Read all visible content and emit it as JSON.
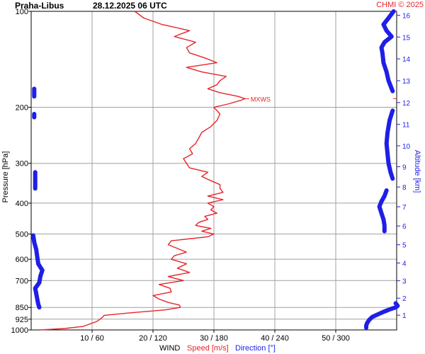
{
  "header": {
    "station": "Praha-Libus",
    "datetime": "28.12.2025 06 UTC",
    "credit": "CHMI © 2025"
  },
  "colors": {
    "speed": "#e8242a",
    "direction": "#1f1fe6",
    "grid": "#a0a0a0",
    "axis": "#000000",
    "background": "#ffffff"
  },
  "chart_data": {
    "type": "line",
    "title": "Praha-Libus   28.12.2025 06 UTC",
    "ylabel_left": "Pressure [hPa]",
    "ylabel_right": "Altitude [km]",
    "xlabel_prefix": "WIND",
    "xlabel_speed": "Speed [m/s]",
    "xlabel_direction": "Direction [°]",
    "pressure_scale": "log",
    "pressure_range": [
      1000,
      100
    ],
    "pressure_ticks": [
      100,
      200,
      300,
      400,
      500,
      600,
      700,
      850,
      925,
      1000
    ],
    "pressure_tick_labels": [
      "100",
      "200",
      "300",
      "400",
      "500",
      "600",
      "700",
      "850",
      "925",
      "1000"
    ],
    "speed_range": [
      0,
      60
    ],
    "direction_range": [
      0,
      360
    ],
    "x_ticks_speed": [
      10,
      20,
      30,
      40,
      50
    ],
    "x_tick_labels": [
      "10 / 60",
      "20 / 120",
      "30 / 180",
      "40 / 240",
      "50 / 300"
    ],
    "altitude_ticks_km": [
      1,
      2,
      3,
      4,
      5,
      6,
      7,
      8,
      9,
      10,
      11,
      12,
      13,
      14,
      15,
      16
    ],
    "altitude_tick_labels": [
      "1",
      "2",
      "3",
      "4",
      "5",
      "6",
      "7",
      "8",
      "9",
      "10",
      "11",
      "12",
      "13",
      "14",
      "15",
      "16"
    ],
    "annotation": "MXWS",
    "max_wind": {
      "speed": 35.1,
      "pressure": 188
    },
    "series": [
      {
        "name": "Speed [m/s]",
        "pressure": [
          1000,
          990,
          975,
          960,
          940,
          920,
          900,
          885,
          865,
          850,
          835,
          820,
          800,
          780,
          760,
          740,
          720,
          700,
          680,
          660,
          640,
          620,
          600,
          585,
          570,
          555,
          540,
          525,
          510,
          500,
          490,
          480,
          470,
          460,
          450,
          440,
          430,
          420,
          410,
          400,
          390,
          380,
          370,
          360,
          350,
          340,
          330,
          320,
          310,
          300,
          290,
          280,
          270,
          260,
          250,
          240,
          230,
          220,
          210,
          200,
          195,
          190,
          188,
          185,
          180,
          175,
          170,
          165,
          160,
          155,
          150,
          145,
          140,
          135,
          130,
          125,
          120,
          115,
          110,
          105,
          100
        ],
        "speed": [
          1.5,
          5.5,
          8.5,
          9.5,
          10.8,
          11.5,
          12.0,
          16.0,
          22.0,
          24.5,
          24.3,
          22.5,
          21.0,
          20.0,
          23.0,
          22.8,
          21.0,
          25.0,
          22.5,
          26.0,
          24.0,
          25.5,
          23.0,
          23.5,
          25.5,
          24.0,
          22.5,
          23.0,
          29.0,
          30.0,
          28.0,
          29.5,
          27.0,
          27.5,
          29.0,
          28.5,
          30.5,
          29.5,
          30.0,
          29.0,
          31.5,
          29.0,
          31.5,
          31.0,
          31.0,
          29.5,
          28.0,
          29.0,
          26.0,
          25.5,
          25.0,
          26.5,
          26.0,
          27.0,
          27.5,
          28.0,
          29.5,
          30.5,
          31.0,
          30.0,
          32.5,
          34.5,
          35.1,
          34.0,
          31.0,
          29.0,
          30.5,
          31.0,
          32.0,
          28.0,
          25.5,
          30.5,
          28.5,
          26.0,
          25.5,
          27.0,
          23.5,
          26.0,
          21.5,
          18.5,
          17.0
        ]
      },
      {
        "name": "Direction [°]",
        "segments": [
          {
            "pressure": [
              985,
              970,
              950,
              930,
              910,
              895,
              875,
              860,
              850,
              840,
              825
            ],
            "direction": [
              330,
              330,
              331,
              333,
              336,
              341,
              348,
              354,
              359,
              361,
              359
            ]
          },
          {
            "pressure": [
              850,
              830,
              800,
              770,
              740,
              710,
              680,
              650,
              620,
              590,
              560,
              530,
              505
            ],
            "direction": [
              8,
              7,
              6,
              5,
              4,
              8,
              9,
              11,
              7,
              6,
              5,
              3,
              2
            ]
          },
          {
            "pressure": [
              490,
              470,
              450,
              430,
              410,
              395,
              380,
              365
            ],
            "direction": [
              348,
              348,
              347,
              345,
              343,
              345,
              348,
              350
            ]
          },
          {
            "pressure": [
              360,
              350,
              340,
              330,
              320
            ],
            "direction": [
              4,
              4,
              4,
              4,
              4
            ]
          },
          {
            "pressure": [
              335,
              320,
              300,
              280,
              260,
              240,
              220,
              205
            ],
            "direction": [
              356,
              354,
              352,
              351,
              350,
              351,
              353,
              356
            ]
          },
          {
            "pressure": [
              215,
              210
            ],
            "direction": [
              3,
              3
            ]
          },
          {
            "pressure": [
              185,
              175
            ],
            "direction": [
              3,
              3
            ]
          },
          {
            "pressure": [
              178,
              165,
              155,
              145,
              135,
              130,
              125,
              120,
              115,
              110,
              105,
              100
            ],
            "direction": [
              356,
              352,
              350,
              347,
              346,
              345,
              348,
              355,
              350,
              347,
              352,
              357
            ]
          }
        ]
      }
    ]
  }
}
